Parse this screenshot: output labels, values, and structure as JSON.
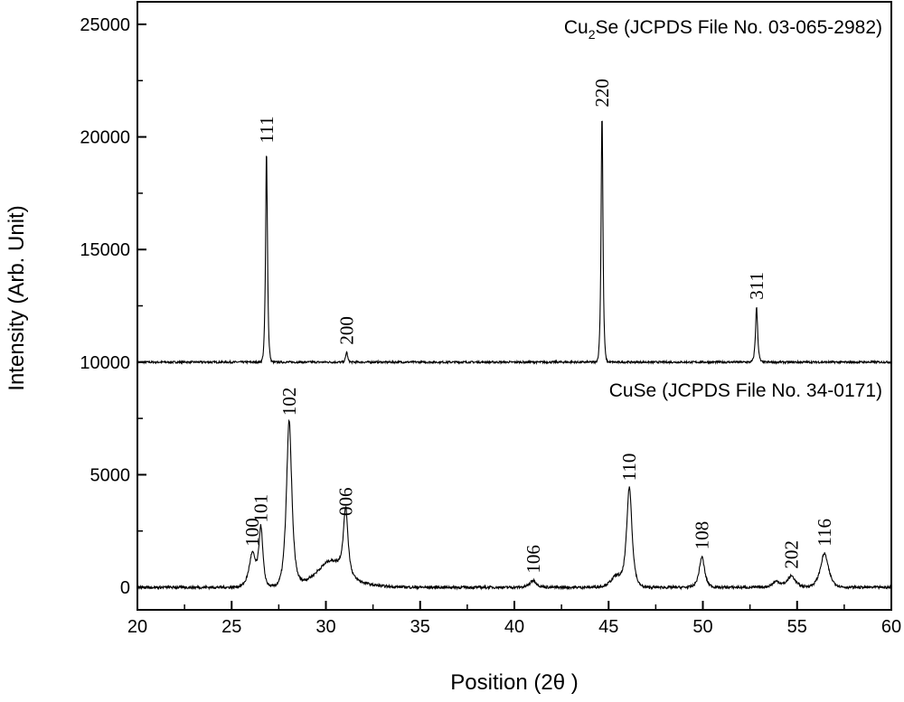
{
  "chart_data": {
    "type": "line",
    "title": "",
    "xlabel": "Position (2θ )",
    "ylabel": "Intensity (Arb. Unit)",
    "xlim": [
      20,
      60
    ],
    "ylim": [
      -1000,
      26000
    ],
    "x_ticks": [
      20,
      25,
      30,
      35,
      40,
      45,
      50,
      55,
      60
    ],
    "y_ticks": [
      0,
      5000,
      10000,
      15000,
      20000,
      25000
    ],
    "grid": false,
    "series": [
      {
        "name": "Cu2Se (JCPDS File No. 03-065-2982)",
        "name_main": "Cu",
        "name_sub": "2",
        "name_rest": "Se (JCPDS File No. 03-065-2982)",
        "baseline": 10000,
        "peaks": [
          {
            "x": 26.85,
            "y": 19400,
            "width": 0.07,
            "label": "111"
          },
          {
            "x": 31.1,
            "y": 10450,
            "width": 0.07,
            "label": "200"
          },
          {
            "x": 44.65,
            "y": 21000,
            "width": 0.07,
            "label": "220"
          },
          {
            "x": 52.85,
            "y": 12450,
            "width": 0.08,
            "label": "311"
          }
        ]
      },
      {
        "name": "CuSe (JCPDS File No. 34-0171)",
        "baseline": 0,
        "peaks": [
          {
            "x": 26.1,
            "y": 1500,
            "width": 0.25,
            "label": "100"
          },
          {
            "x": 26.55,
            "y": 2550,
            "width": 0.15,
            "label": "101"
          },
          {
            "x": 28.05,
            "y": 7300,
            "width": 0.2,
            "label": "102"
          },
          {
            "x": 31.05,
            "y": 2850,
            "width": 0.17,
            "label": "006"
          },
          {
            "x": 41.0,
            "y": 300,
            "width": 0.25,
            "label": "106"
          },
          {
            "x": 46.1,
            "y": 4400,
            "width": 0.2,
            "label": "110"
          },
          {
            "x": 49.95,
            "y": 1350,
            "width": 0.2,
            "label": "108"
          },
          {
            "x": 54.7,
            "y": 500,
            "width": 0.3,
            "label": "202"
          },
          {
            "x": 56.45,
            "y": 1500,
            "width": 0.3,
            "label": "116"
          }
        ],
        "broad_features": [
          {
            "x": 30.3,
            "y": 1200,
            "width": 1.1
          },
          {
            "x": 53.9,
            "y": 250,
            "width": 0.3
          },
          {
            "x": 45.4,
            "y": 500,
            "width": 0.4
          }
        ]
      }
    ]
  }
}
